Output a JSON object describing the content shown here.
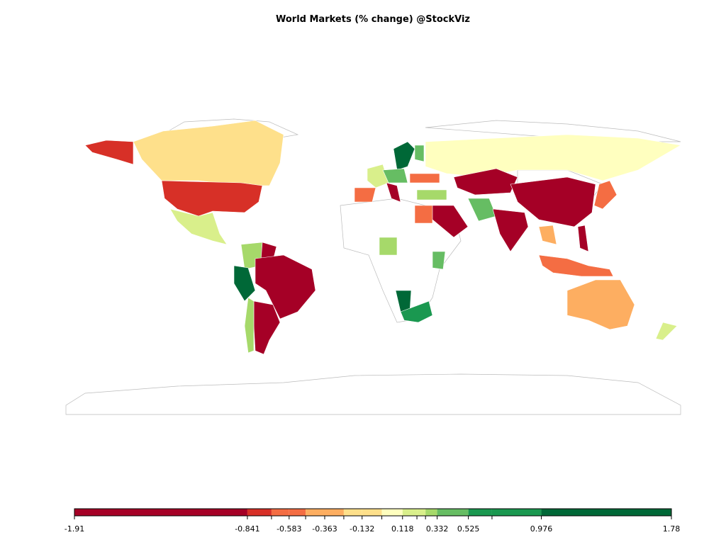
{
  "chart_data": {
    "type": "choropleth",
    "title": "World Markets (% change) @StockViz",
    "breaks": [
      -1.91,
      -0.841,
      -0.692,
      -0.583,
      -0.481,
      -0.363,
      -0.245,
      -0.132,
      -0.01,
      0.118,
      0.207,
      0.26,
      0.332,
      0.525,
      0.671,
      0.976,
      1.78
    ],
    "colors": [
      "#a50026",
      "#d73027",
      "#f46d43",
      "#f46d43",
      "#fdae61",
      "#fdae61",
      "#fee08b",
      "#fee08b",
      "#ffffbf",
      "#d9ef8b",
      "#d9ef8b",
      "#a6d96a",
      "#66bd63",
      "#1a9850",
      "#1a9850",
      "#006837"
    ],
    "xlim": [
      -1.91,
      1.78
    ],
    "xticks": [
      -1.91,
      -0.841,
      -0.583,
      -0.363,
      -0.132,
      0.118,
      0.332,
      0.525,
      0.976,
      1.78
    ]
  }
}
